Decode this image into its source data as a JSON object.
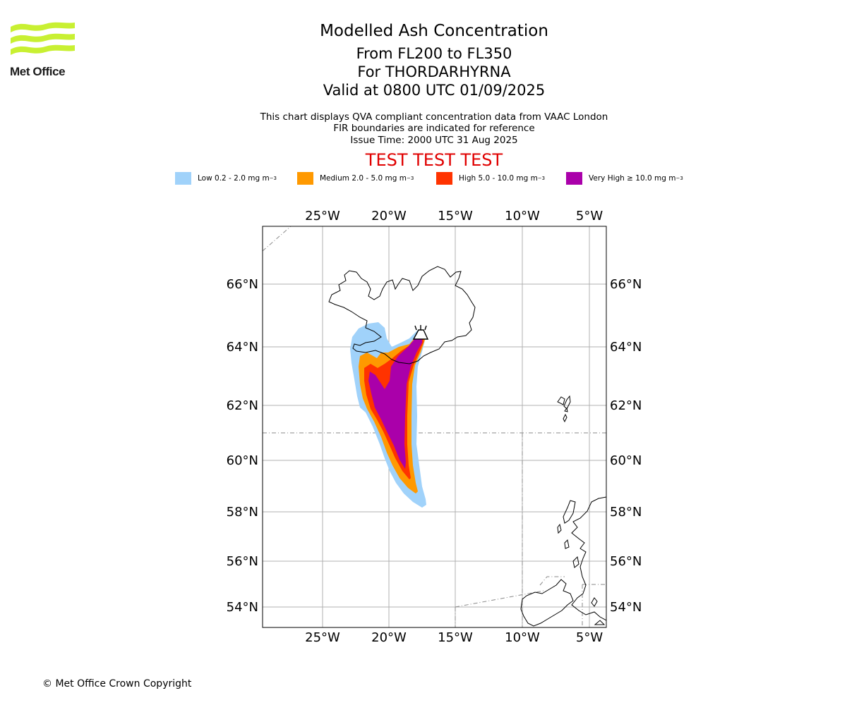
{
  "branding": {
    "logo_text": "Met Office",
    "logo_color": "#c8f032"
  },
  "header": {
    "title": "Modelled Ash Concentration",
    "line1": "From FL200 to FL350",
    "line2": "For THORDARHYRNA",
    "line3": "Valid at 0800 UTC 01/09/2025",
    "sub1": "This chart displays QVA compliant concentration data from VAAC London",
    "sub2": "FIR boundaries are indicated for reference",
    "sub3": "Issue Time: 2000 UTC 31 Aug 2025",
    "test_banner": "TEST TEST TEST"
  },
  "legend": [
    {
      "label": "Low 0.2 - 2.0 mg m",
      "sup": "−3",
      "color": "#a0d2fa"
    },
    {
      "label": "Medium 2.0 - 5.0 mg m",
      "sup": "−3",
      "color": "#ff9900"
    },
    {
      "label": "High 5.0 - 10.0 mg m",
      "sup": "−3",
      "color": "#ff3300"
    },
    {
      "label": "Very High  ≥  10.0 mg m",
      "sup": "−3",
      "color": "#aa00aa"
    }
  ],
  "map": {
    "lon_labels": [
      "25°W",
      "20°W",
      "15°W",
      "10°W",
      "5°W"
    ],
    "lat_labels": [
      "66°N",
      "64°N",
      "62°N",
      "60°N",
      "58°N",
      "56°N",
      "54°N"
    ],
    "volcano": "volcano-icon"
  },
  "footer": {
    "copyright": "© Met Office Crown Copyright"
  }
}
